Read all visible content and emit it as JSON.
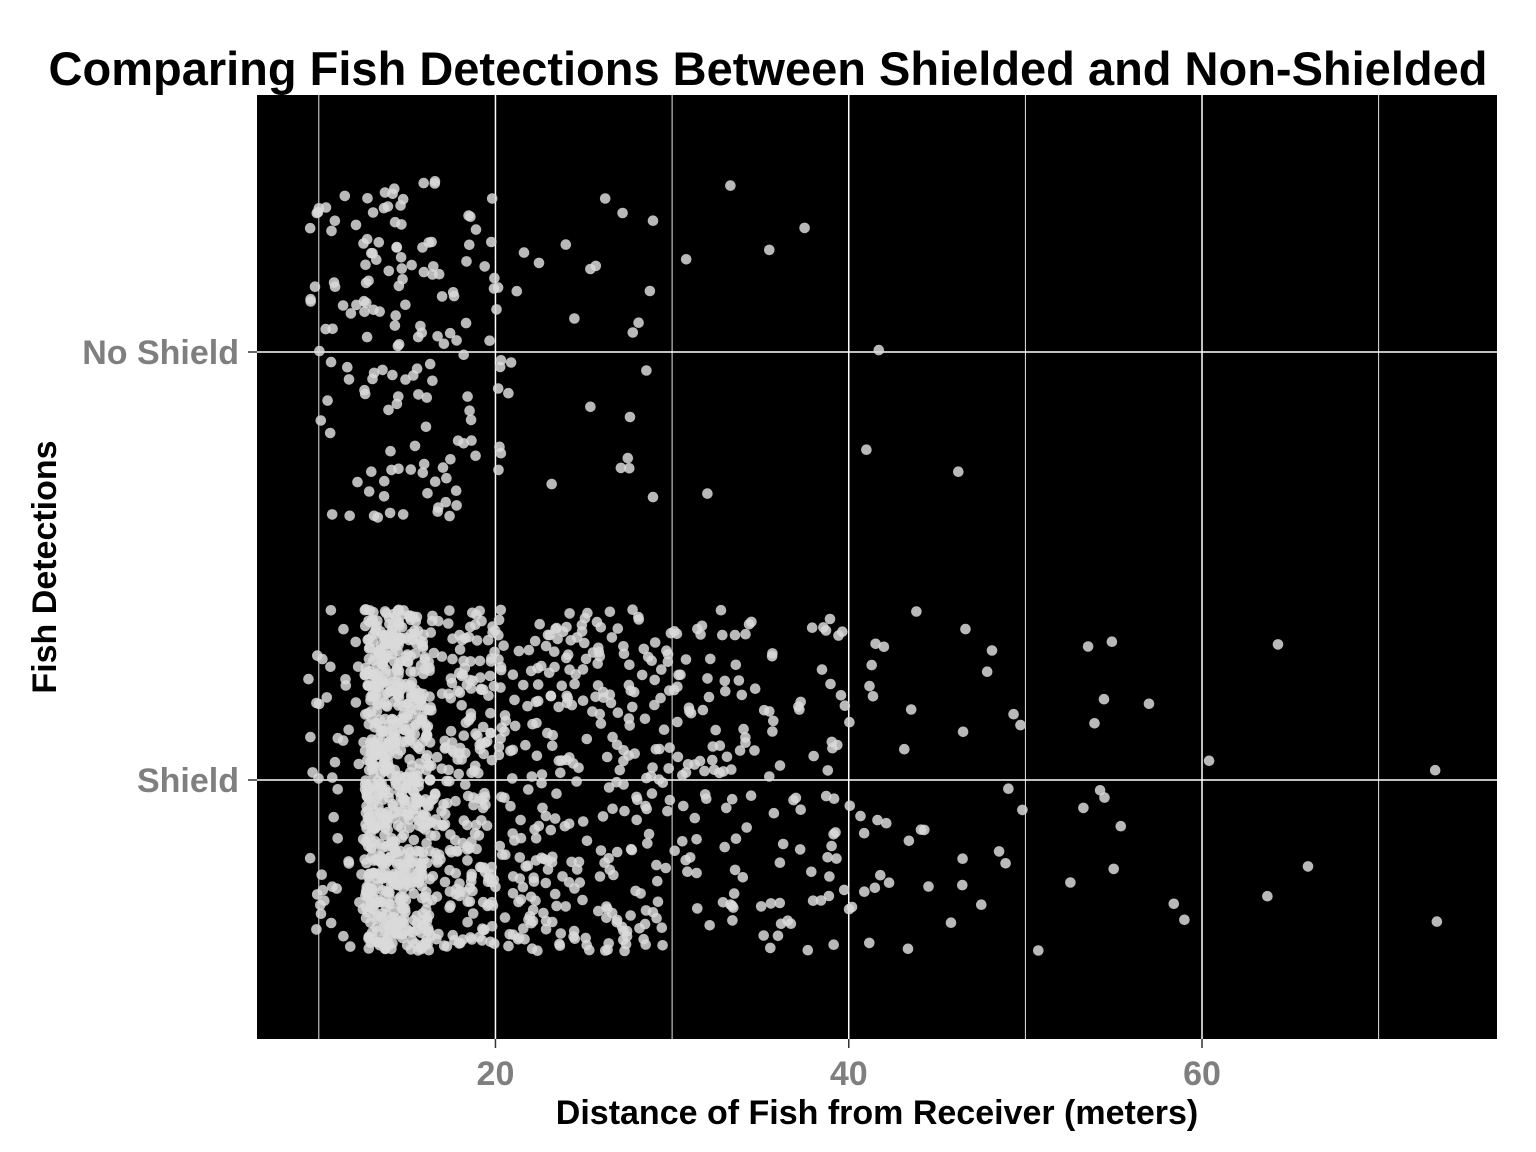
{
  "chart_data": {
    "type": "scatter",
    "title": "Comparing Fish Detections Between Shielded and Non-Shielded",
    "xlabel": "Distance of Fish from Receiver (meters)",
    "ylabel": "Fish Detections",
    "x_ticks": [
      20,
      40,
      60
    ],
    "x_minor_ticks": [
      10,
      30,
      50,
      70
    ],
    "xlim": [
      6.5,
      76.7
    ],
    "categories": [
      "Shield",
      "No Shield"
    ],
    "jitter": "vertical jitter within each category band",
    "grid": true,
    "panel_background": "#000000",
    "grid_color": "#ffffff",
    "point_color": "#d9d9d9",
    "series": [
      {
        "category": "No Shield",
        "count": 190,
        "x_range": [
          9.6,
          46.2
        ],
        "notable_points": [
          {
            "x": 32.0
          },
          {
            "x": 35.5
          },
          {
            "x": 33.3
          },
          {
            "x": 37.5
          },
          {
            "x": 41.0
          },
          {
            "x": 41.7
          },
          {
            "x": 46.2
          },
          {
            "x": 30.8
          }
        ]
      },
      {
        "category": "Shield",
        "count": 1450,
        "x_range": [
          9.4,
          73.3
        ],
        "notable_points": [
          {
            "x": 73.3
          },
          {
            "x": 73.2
          },
          {
            "x": 66.0
          },
          {
            "x": 64.3
          },
          {
            "x": 63.7
          },
          {
            "x": 60.4
          },
          {
            "x": 59.0
          },
          {
            "x": 58.4
          },
          {
            "x": 57.0
          },
          {
            "x": 55.4
          },
          {
            "x": 55.0
          },
          {
            "x": 54.9
          }
        ]
      }
    ]
  }
}
